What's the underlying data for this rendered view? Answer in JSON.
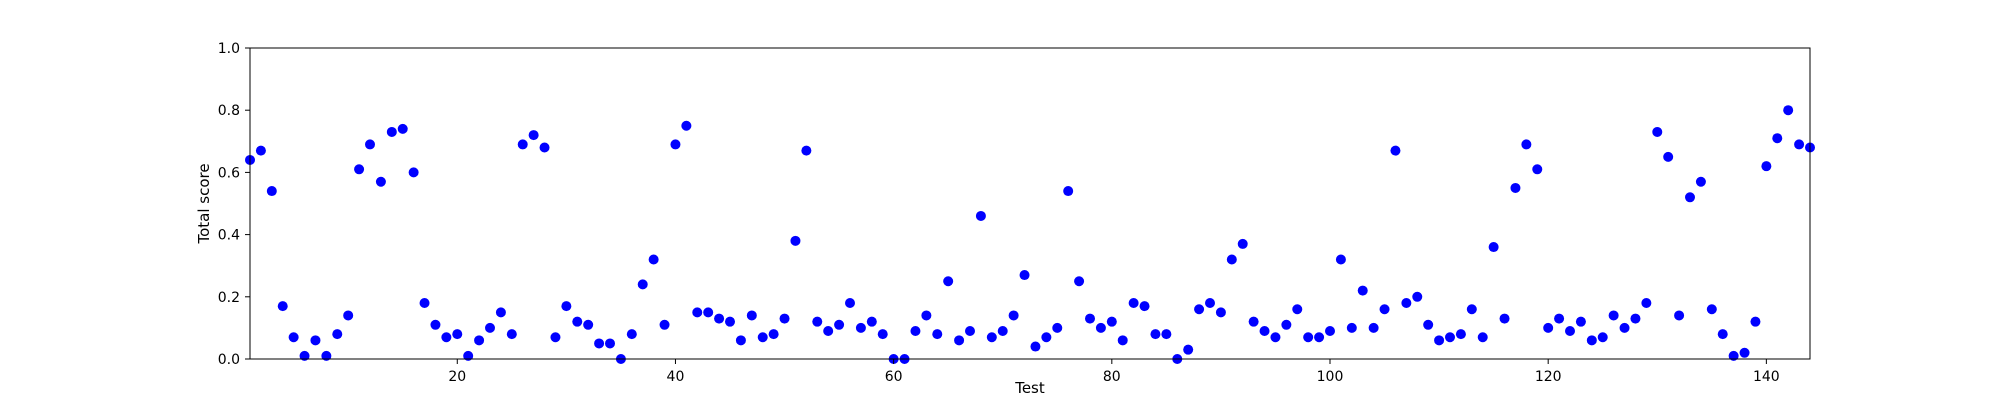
{
  "chart_data": {
    "type": "scatter",
    "title": "",
    "xlabel": "Test",
    "ylabel": "Total score",
    "xlim": [
      1,
      144
    ],
    "ylim": [
      0,
      1
    ],
    "x_ticks": [
      20,
      40,
      60,
      80,
      100,
      120,
      140
    ],
    "y_ticks": [
      0.0,
      0.2,
      0.4,
      0.6,
      0.8,
      1.0
    ],
    "x_tick_labels": [
      "20",
      "40",
      "60",
      "80",
      "100",
      "120",
      "140"
    ],
    "y_tick_labels": [
      "0.0",
      "0.2",
      "0.4",
      "0.6",
      "0.8",
      "1.0"
    ],
    "grid": false,
    "marker_color": "#0000ff",
    "series": [
      {
        "x": [
          1,
          2,
          3,
          4,
          5,
          6,
          7,
          8,
          9,
          10,
          11,
          12,
          13,
          14,
          15,
          16,
          17,
          18,
          19,
          20,
          21,
          22,
          23,
          24,
          25,
          26,
          27,
          28,
          29,
          30,
          31,
          32,
          33,
          34,
          35,
          36,
          37,
          38,
          39,
          40,
          41,
          42,
          43,
          44,
          45,
          46,
          47,
          48,
          49,
          50,
          51,
          52,
          53,
          54,
          55,
          56,
          57,
          58,
          59,
          60,
          61,
          62,
          63,
          64,
          65,
          66,
          67,
          68,
          69,
          70,
          71,
          72,
          73,
          74,
          75,
          76,
          77,
          78,
          79,
          80,
          81,
          82,
          83,
          84,
          85,
          86,
          87,
          88,
          89,
          90,
          91,
          92,
          93,
          94,
          95,
          96,
          97,
          98,
          99,
          100,
          101,
          102,
          103,
          104,
          105,
          106,
          107,
          108,
          109,
          110,
          111,
          112,
          113,
          114,
          115,
          116,
          117,
          118,
          119,
          120,
          121,
          122,
          123,
          124,
          125,
          126,
          127,
          128,
          129,
          130,
          131,
          132,
          133,
          134,
          135,
          136,
          137,
          138,
          139,
          140,
          141,
          142,
          143,
          144
        ],
        "y": [
          0.64,
          0.67,
          0.54,
          0.17,
          0.07,
          0.01,
          0.06,
          0.01,
          0.08,
          0.14,
          0.61,
          0.69,
          0.57,
          0.73,
          0.74,
          0.6,
          0.18,
          0.11,
          0.07,
          0.08,
          0.01,
          0.06,
          0.1,
          0.15,
          0.08,
          0.69,
          0.72,
          0.68,
          0.07,
          0.17,
          0.12,
          0.11,
          0.05,
          0.05,
          0.0,
          0.08,
          0.24,
          0.32,
          0.11,
          0.69,
          0.75,
          0.15,
          0.15,
          0.13,
          0.12,
          0.06,
          0.14,
          0.07,
          0.08,
          0.13,
          0.38,
          0.67,
          0.12,
          0.09,
          0.11,
          0.18,
          0.1,
          0.12,
          0.08,
          0.0,
          0.0,
          0.09,
          0.14,
          0.08,
          0.25,
          0.06,
          0.09,
          0.46,
          0.07,
          0.09,
          0.14,
          0.27,
          0.04,
          0.07,
          0.1,
          0.54,
          0.25,
          0.13,
          0.1,
          0.12,
          0.06,
          0.18,
          0.17,
          0.08,
          0.08,
          0.0,
          0.03,
          0.16,
          0.18,
          0.15,
          0.32,
          0.37,
          0.12,
          0.09,
          0.07,
          0.11,
          0.16,
          0.07,
          0.07,
          0.09,
          0.32,
          0.1,
          0.22,
          0.1,
          0.16,
          0.67,
          0.18,
          0.2,
          0.11,
          0.06,
          0.07,
          0.08,
          0.16,
          0.07,
          0.36,
          0.13,
          0.55,
          0.69,
          0.61,
          0.1,
          0.13,
          0.09,
          0.12,
          0.06,
          0.07,
          0.14,
          0.1,
          0.13,
          0.18,
          0.73,
          0.65,
          0.14,
          0.52,
          0.57,
          0.16,
          0.08,
          0.01,
          0.02,
          0.12,
          0.62,
          0.71,
          0.8,
          0.69,
          0.68
        ]
      }
    ]
  }
}
